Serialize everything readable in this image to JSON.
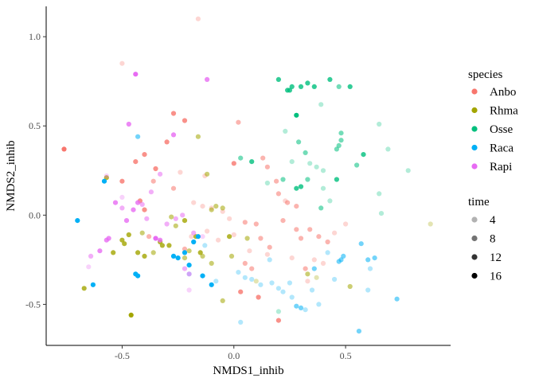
{
  "chart_data": {
    "type": "scatter",
    "xlabel": "NMDS1_inhib",
    "ylabel": "NMDS2_inhib",
    "xlim": [
      -0.84,
      0.97
    ],
    "ylim": [
      -0.73,
      1.17
    ],
    "x_ticks": [
      -0.5,
      0.0,
      0.5
    ],
    "x_tick_labels": [
      "-0.5",
      "0.0",
      "0.5"
    ],
    "y_ticks": [
      -0.5,
      0.0,
      0.5,
      1.0
    ],
    "y_tick_labels": [
      "-0.5",
      "0.0",
      "0.5",
      "1.0"
    ],
    "grid": false,
    "legend_position": "right",
    "legend": {
      "species_title": "species",
      "species": [
        {
          "name": "Anbo",
          "color": "#F8766D"
        },
        {
          "name": "Rhma",
          "color": "#A3A500"
        },
        {
          "name": "Osse",
          "color": "#00BF7D"
        },
        {
          "name": "Raca",
          "color": "#00B0F6"
        },
        {
          "name": "Rapi",
          "color": "#E76BF3"
        }
      ],
      "time_title": "time",
      "time": [
        {
          "label": "4",
          "alpha": 0.3
        },
        {
          "label": "8",
          "alpha": 0.55
        },
        {
          "label": "12",
          "alpha": 0.8
        },
        {
          "label": "16",
          "alpha": 1.0
        }
      ]
    },
    "series": [
      {
        "species": "Anbo",
        "points": [
          [
            -0.76,
            0.37,
            16
          ],
          [
            -0.5,
            0.19,
            12
          ],
          [
            -0.4,
            0.34,
            12
          ],
          [
            -0.27,
            0.57,
            12
          ],
          [
            -0.22,
            0.53,
            12
          ],
          [
            -0.3,
            0.41,
            12
          ],
          [
            -0.35,
            0.26,
            12
          ],
          [
            -0.42,
            0.08,
            12
          ],
          [
            -0.4,
            0.03,
            12
          ],
          [
            -0.44,
            0.3,
            12
          ],
          [
            -0.16,
            1.1,
            4
          ],
          [
            0.02,
            0.52,
            8
          ],
          [
            0.0,
            0.29,
            12
          ],
          [
            0.13,
            0.32,
            8
          ],
          [
            0.15,
            0.27,
            8
          ],
          [
            0.19,
            0.19,
            8
          ],
          [
            0.2,
            0.12,
            8
          ],
          [
            0.23,
            0.08,
            4
          ],
          [
            0.24,
            0.07,
            8
          ],
          [
            0.28,
            0.05,
            8
          ],
          [
            -0.27,
            0.15,
            8
          ],
          [
            -0.18,
            0.07,
            4
          ],
          [
            -0.14,
            0.05,
            4
          ],
          [
            -0.1,
            0.04,
            4
          ],
          [
            -0.05,
            0.02,
            4
          ],
          [
            -0.02,
            -0.02,
            4
          ],
          [
            0.05,
            -0.04,
            8
          ],
          [
            0.1,
            -0.05,
            8
          ],
          [
            0.12,
            -0.13,
            8
          ],
          [
            0.16,
            -0.18,
            8
          ],
          [
            0.22,
            -0.03,
            8
          ],
          [
            0.28,
            -0.08,
            8
          ],
          [
            0.3,
            -0.13,
            8
          ],
          [
            0.34,
            -0.08,
            8
          ],
          [
            0.38,
            -0.12,
            8
          ],
          [
            0.42,
            -0.15,
            8
          ],
          [
            0.45,
            -0.1,
            4
          ],
          [
            0.5,
            -0.05,
            4
          ],
          [
            0.08,
            -0.3,
            8
          ],
          [
            0.11,
            -0.46,
            12
          ],
          [
            0.03,
            -0.43,
            12
          ],
          [
            0.2,
            -0.59,
            12
          ],
          [
            0.32,
            -0.3,
            8
          ],
          [
            0.4,
            -0.27,
            4
          ],
          [
            0.36,
            -0.25,
            4
          ],
          [
            -0.19,
            -0.12,
            4
          ],
          [
            -0.22,
            -0.19,
            8
          ],
          [
            -0.38,
            -0.12,
            8
          ],
          [
            0.05,
            -0.27,
            8
          ],
          [
            0.15,
            -0.22,
            4
          ],
          [
            -0.07,
            -0.14,
            4
          ],
          [
            -0.5,
            0.85,
            4
          ],
          [
            -0.36,
            0.19,
            8
          ],
          [
            -0.24,
            0.24,
            4
          ],
          [
            -0.13,
            0.22,
            4
          ],
          [
            0.26,
            -0.24,
            4
          ],
          [
            0.33,
            -0.37,
            4
          ],
          [
            -0.12,
            -0.09,
            4
          ],
          [
            0.0,
            -0.11,
            4
          ],
          [
            0.07,
            -0.2,
            4
          ]
        ]
      },
      {
        "species": "Rhma",
        "points": [
          [
            -0.57,
            0.21,
            12
          ],
          [
            -0.54,
            -0.21,
            12
          ],
          [
            -0.5,
            -0.14,
            12
          ],
          [
            -0.49,
            -0.16,
            12
          ],
          [
            -0.47,
            -0.11,
            12
          ],
          [
            -0.43,
            -0.21,
            12
          ],
          [
            -0.4,
            -0.23,
            12
          ],
          [
            -0.41,
            -0.1,
            8
          ],
          [
            -0.36,
            -0.21,
            8
          ],
          [
            -0.33,
            -0.15,
            12
          ],
          [
            -0.32,
            -0.17,
            12
          ],
          [
            -0.29,
            -0.17,
            12
          ],
          [
            -0.28,
            -0.01,
            8
          ],
          [
            -0.22,
            -0.03,
            12
          ],
          [
            -0.22,
            -0.24,
            8
          ],
          [
            -0.2,
            -0.2,
            8
          ],
          [
            -0.17,
            -0.12,
            12
          ],
          [
            -0.15,
            -0.21,
            12
          ],
          [
            -0.14,
            -0.23,
            8
          ],
          [
            -0.12,
            0.23,
            8
          ],
          [
            -0.1,
            0.03,
            8
          ],
          [
            -0.08,
            0.05,
            8
          ],
          [
            -0.05,
            0.04,
            8
          ],
          [
            -0.05,
            -0.48,
            8
          ],
          [
            -0.02,
            -0.12,
            12
          ],
          [
            -0.01,
            -0.23,
            8
          ],
          [
            0.06,
            -0.13,
            8
          ],
          [
            -0.16,
            0.44,
            8
          ],
          [
            -0.46,
            -0.56,
            16
          ],
          [
            -0.67,
            -0.41,
            12
          ],
          [
            -0.1,
            -0.27,
            8
          ],
          [
            0.1,
            -0.37,
            4
          ],
          [
            0.33,
            -0.33,
            8
          ],
          [
            0.37,
            -0.35,
            4
          ],
          [
            0.52,
            -0.4,
            8
          ],
          [
            0.88,
            -0.05,
            4
          ],
          [
            -0.26,
            -0.06,
            8
          ]
        ]
      },
      {
        "species": "Osse",
        "points": [
          [
            0.2,
            0.76,
            12
          ],
          [
            0.24,
            0.7,
            12
          ],
          [
            0.25,
            0.7,
            12
          ],
          [
            0.26,
            0.72,
            12
          ],
          [
            0.3,
            0.72,
            12
          ],
          [
            0.33,
            0.74,
            12
          ],
          [
            0.36,
            0.72,
            12
          ],
          [
            0.43,
            0.76,
            12
          ],
          [
            0.47,
            0.72,
            8
          ],
          [
            0.52,
            0.72,
            12
          ],
          [
            0.39,
            0.62,
            4
          ],
          [
            0.28,
            0.56,
            16
          ],
          [
            0.23,
            0.47,
            4
          ],
          [
            0.29,
            0.41,
            8
          ],
          [
            0.32,
            0.35,
            8
          ],
          [
            0.34,
            0.29,
            4
          ],
          [
            0.37,
            0.27,
            4
          ],
          [
            0.4,
            0.25,
            4
          ],
          [
            0.46,
            0.37,
            8
          ],
          [
            0.47,
            0.39,
            8
          ],
          [
            0.48,
            0.42,
            8
          ],
          [
            0.48,
            0.46,
            8
          ],
          [
            0.55,
            0.28,
            8
          ],
          [
            0.58,
            0.34,
            12
          ],
          [
            0.46,
            0.2,
            12
          ],
          [
            0.4,
            0.15,
            4
          ],
          [
            0.3,
            0.16,
            12
          ],
          [
            0.28,
            0.15,
            12
          ],
          [
            0.22,
            0.2,
            8
          ],
          [
            0.15,
            0.18,
            4
          ],
          [
            0.08,
            0.3,
            12
          ],
          [
            0.03,
            0.32,
            8
          ],
          [
            0.26,
            0.3,
            4
          ],
          [
            0.33,
            0.2,
            8
          ],
          [
            0.65,
            0.51,
            4
          ],
          [
            0.69,
            0.37,
            4
          ],
          [
            0.78,
            0.25,
            4
          ],
          [
            0.65,
            0.12,
            4
          ],
          [
            0.43,
            0.08,
            4
          ],
          [
            0.39,
            0.04,
            8
          ],
          [
            0.66,
            0.01,
            4
          ],
          [
            0.2,
            -0.54,
            4
          ]
        ]
      },
      {
        "species": "Raca",
        "points": [
          [
            -0.7,
            -0.03,
            16
          ],
          [
            -0.63,
            -0.39,
            16
          ],
          [
            -0.58,
            0.19,
            16
          ],
          [
            -0.44,
            -0.33,
            16
          ],
          [
            -0.43,
            -0.34,
            16
          ],
          [
            -0.43,
            0.44,
            8
          ],
          [
            -0.27,
            -0.23,
            16
          ],
          [
            -0.25,
            -0.24,
            16
          ],
          [
            -0.22,
            -0.21,
            16
          ],
          [
            -0.2,
            -0.28,
            16
          ],
          [
            -0.18,
            -0.15,
            16
          ],
          [
            -0.16,
            -0.12,
            16
          ],
          [
            -0.14,
            -0.34,
            16
          ],
          [
            -0.1,
            -0.39,
            16
          ],
          [
            -0.2,
            -0.33,
            4
          ],
          [
            -0.13,
            -0.17,
            4
          ],
          [
            -0.08,
            -0.37,
            4
          ],
          [
            0.02,
            -0.32,
            4
          ],
          [
            0.05,
            -0.35,
            4
          ],
          [
            0.08,
            -0.36,
            4
          ],
          [
            0.17,
            -0.38,
            4
          ],
          [
            0.22,
            -0.43,
            4
          ],
          [
            0.26,
            -0.46,
            4
          ],
          [
            0.28,
            -0.51,
            8
          ],
          [
            0.3,
            -0.52,
            8
          ],
          [
            0.32,
            -0.53,
            4
          ],
          [
            0.35,
            -0.42,
            4
          ],
          [
            0.38,
            -0.5,
            4
          ],
          [
            0.45,
            -0.36,
            4
          ],
          [
            0.47,
            -0.26,
            8
          ],
          [
            0.48,
            -0.25,
            8
          ],
          [
            0.49,
            -0.23,
            8
          ],
          [
            0.57,
            -0.16,
            8
          ],
          [
            0.6,
            -0.25,
            8
          ],
          [
            0.63,
            -0.24,
            8
          ],
          [
            0.61,
            -0.3,
            4
          ],
          [
            0.73,
            -0.47,
            8
          ],
          [
            0.56,
            -0.65,
            8
          ],
          [
            0.6,
            -0.42,
            4
          ],
          [
            0.03,
            -0.6,
            4
          ],
          [
            0.12,
            -0.39,
            4
          ],
          [
            0.16,
            -0.25,
            4
          ],
          [
            0.2,
            -0.41,
            4
          ],
          [
            0.36,
            -0.3,
            8
          ],
          [
            0.25,
            -0.38,
            4
          ],
          [
            0.42,
            -0.21,
            4
          ]
        ]
      },
      {
        "species": "Rapi",
        "points": [
          [
            -0.64,
            -0.23,
            8
          ],
          [
            -0.6,
            -0.2,
            12
          ],
          [
            -0.57,
            -0.14,
            12
          ],
          [
            -0.56,
            -0.13,
            12
          ],
          [
            -0.53,
            0.07,
            12
          ],
          [
            -0.5,
            0.04,
            8
          ],
          [
            -0.48,
            -0.03,
            12
          ],
          [
            -0.47,
            0.51,
            12
          ],
          [
            -0.44,
            0.79,
            16
          ],
          [
            -0.43,
            0.07,
            12
          ],
          [
            -0.41,
            0.06,
            8
          ],
          [
            -0.39,
            -0.02,
            8
          ],
          [
            -0.35,
            -0.13,
            16
          ],
          [
            -0.33,
            -0.14,
            12
          ],
          [
            -0.27,
            0.45,
            12
          ],
          [
            -0.26,
            -0.02,
            8
          ],
          [
            -0.23,
            0.0,
            8
          ],
          [
            -0.22,
            -0.3,
            8
          ],
          [
            -0.2,
            -0.33,
            8
          ],
          [
            -0.18,
            -0.1,
            8
          ],
          [
            -0.12,
            0.76,
            12
          ],
          [
            -0.33,
            0.23,
            8
          ],
          [
            -0.57,
            0.22,
            4
          ],
          [
            -0.5,
            0.1,
            4
          ],
          [
            -0.37,
            0.13,
            8
          ],
          [
            -0.14,
            -0.12,
            4
          ],
          [
            -0.2,
            -0.42,
            4
          ],
          [
            -0.65,
            -0.29,
            4
          ],
          [
            -0.45,
            0.03,
            12
          ],
          [
            -0.3,
            -0.05,
            8
          ]
        ]
      }
    ]
  }
}
